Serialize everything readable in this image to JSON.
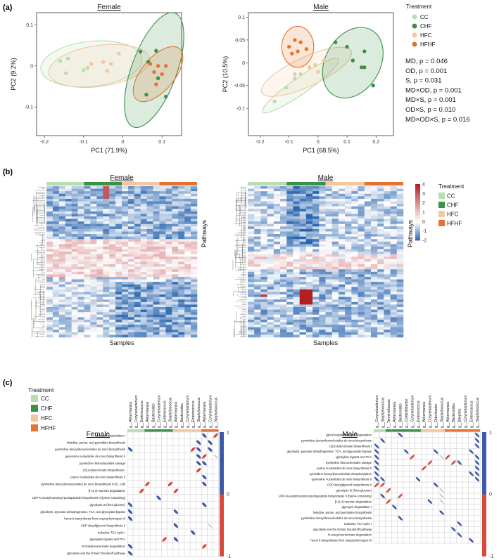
{
  "panel_labels": [
    "(a)",
    "(b)",
    "(c)"
  ],
  "colors": {
    "CC": "#b9dcb0",
    "CHF": "#3a9148",
    "HFC": "#f2c7a0",
    "HFHF": "#e3732e",
    "pos": "#d8493c",
    "neg": "#3d5aa8"
  },
  "chart_data": [
    {
      "type": "scatter",
      "title": "Female",
      "xlabel": "PC1 (71.9%)",
      "ylabel": "PC2 (9.2%)",
      "xlim": [
        -0.22,
        0.15
      ],
      "ylim": [
        -0.17,
        0.13
      ],
      "xticks": [
        -0.2,
        -0.1,
        0.0,
        0.1
      ],
      "yticks": [
        -0.1,
        0.0,
        0.1
      ],
      "series": [
        {
          "name": "CC",
          "points": [
            [
              -0.16,
              0.012
            ],
            [
              -0.14,
              0.018
            ],
            [
              -0.145,
              -0.018
            ],
            [
              -0.09,
              -0.005
            ],
            [
              -0.1,
              -0.01
            ]
          ]
        },
        {
          "name": "CHF",
          "points": [
            [
              0.045,
              0.035
            ],
            [
              0.065,
              0.01
            ],
            [
              0.085,
              0.037
            ],
            [
              0.09,
              -0.03
            ],
            [
              0.06,
              -0.07
            ],
            [
              0.11,
              -0.075
            ]
          ]
        },
        {
          "name": "HFC",
          "points": [
            [
              -0.05,
              0.01
            ],
            [
              -0.03,
              0.005
            ],
            [
              -0.01,
              0.03
            ],
            [
              -0.04,
              -0.012
            ],
            [
              -0.08,
              0.005
            ]
          ]
        },
        {
          "name": "HFHF",
          "points": [
            [
              0.07,
              0.005
            ],
            [
              0.09,
              0.0
            ],
            [
              0.08,
              -0.015
            ],
            [
              0.1,
              -0.02
            ],
            [
              0.11,
              0.0
            ],
            [
              0.085,
              -0.045
            ]
          ]
        }
      ],
      "ellipses": [
        {
          "group": "CC",
          "cx": -0.08,
          "cy": 0.005,
          "rx": 0.13,
          "ry": 0.055,
          "angle": -6
        },
        {
          "group": "HFC",
          "cx": -0.06,
          "cy": 0.0,
          "rx": 0.13,
          "ry": 0.05,
          "angle": -8
        },
        {
          "group": "CHF",
          "cx": 0.08,
          "cy": -0.01,
          "rx": 0.155,
          "ry": 0.055,
          "angle": -70
        },
        {
          "group": "HFHF",
          "cx": 0.09,
          "cy": -0.02,
          "rx": 0.085,
          "ry": 0.04,
          "angle": -50
        }
      ]
    },
    {
      "type": "scatter",
      "title": "Male",
      "xlabel": "PC1 (68.5%)",
      "ylabel": "PC2 (10.5%)",
      "xlim": [
        -0.24,
        0.26
      ],
      "ylim": [
        -0.16,
        0.11
      ],
      "xticks": [
        -0.2,
        -0.1,
        0.0,
        0.1,
        0.2
      ],
      "yticks": [
        -0.1,
        -0.05,
        0.0,
        0.05,
        0.1
      ],
      "series": [
        {
          "name": "CC",
          "points": [
            [
              -0.15,
              -0.085
            ],
            [
              -0.11,
              -0.055
            ],
            [
              -0.08,
              -0.035
            ],
            [
              -0.06,
              -0.025
            ],
            [
              -0.03,
              -0.01
            ]
          ]
        },
        {
          "name": "CHF",
          "points": [
            [
              0.06,
              0.045
            ],
            [
              0.1,
              0.035
            ],
            [
              0.16,
              0.025
            ],
            [
              0.15,
              -0.01
            ],
            [
              0.12,
              0.005
            ],
            [
              0.16,
              -0.01
            ],
            [
              0.19,
              -0.05
            ]
          ]
        },
        {
          "name": "HFC",
          "points": [
            [
              -0.08,
              -0.025
            ],
            [
              -0.03,
              -0.01
            ],
            [
              -0.01,
              -0.005
            ],
            [
              0.02,
              0.005
            ],
            [
              0.0,
              -0.02
            ]
          ]
        },
        {
          "name": "HFHF",
          "points": [
            [
              -0.1,
              0.035
            ],
            [
              -0.08,
              0.05
            ],
            [
              -0.06,
              0.045
            ],
            [
              -0.07,
              0.025
            ],
            [
              -0.04,
              0.03
            ],
            [
              -0.09,
              0.02
            ]
          ]
        }
      ],
      "ellipses": [
        {
          "group": "CC",
          "cx": -0.06,
          "cy": -0.05,
          "rx": 0.16,
          "ry": 0.018,
          "angle": -35
        },
        {
          "group": "HFC",
          "cx": -0.04,
          "cy": -0.02,
          "rx": 0.17,
          "ry": 0.032,
          "angle": -25
        },
        {
          "group": "CHF",
          "cx": 0.12,
          "cy": 0.0,
          "rx": 0.13,
          "ry": 0.06,
          "angle": -60
        },
        {
          "group": "HFHF",
          "cx": -0.07,
          "cy": 0.035,
          "rx": 0.055,
          "ry": 0.045,
          "angle": 0
        }
      ]
    },
    {
      "type": "heatmap",
      "title": "Female",
      "xlabel": "Samples",
      "ylabel": "Pathways",
      "treatment_bar": [
        "CC",
        "CHF",
        "HFC",
        "HFHF"
      ],
      "colorbar_ticks": [
        4,
        3,
        2,
        1,
        0,
        -1,
        -2
      ]
    },
    {
      "type": "heatmap",
      "title": "Male",
      "xlabel": "Samples",
      "ylabel": "Pathways",
      "treatment_bar": [
        "CC",
        "CHF",
        "HFC",
        "HFHF"
      ]
    },
    {
      "type": "heatmap",
      "title": "Female",
      "colorbar_ticks": [
        1,
        0,
        -1
      ],
      "taxa": [
        "g__Akkermansia",
        "g__Corynebacterium",
        "g__Enterococcus",
        "g__Akkermansia",
        "g__Bacteroides",
        "g__Corynebacterium",
        "g__Enterococcus",
        "g__Staphylococcus",
        "g__Akkermansia",
        "g__Bacteroides",
        "g__Corynebacterium",
        "g__Enterococcus",
        "g__Staphylococcus",
        "g__Akkermansia",
        "g__Corynebacterium",
        "g__Staphylococcus"
      ],
      "taxa_groups": [
        "CC",
        "CC",
        "CC",
        "CHF",
        "CHF",
        "CHF",
        "CHF",
        "CHF",
        "HFC",
        "HFC",
        "HFC",
        "HFC",
        "HFC",
        "HFHF",
        "HFHF",
        "HFHF"
      ],
      "pathways": [
        "glycogen degradation I",
        "histidine, purine, and pyrimidine biosynthesis",
        "pyrimidine deoxyribonucleotides de novo biosynthesis",
        "guanosine nucleotides de novo biosynthesis II",
        "pyrimidine ribonucleosides salvage",
        "(5Z)-dodecenoate biosynthesis I",
        "purine nucleotides de novo biosynthesis II",
        "pyrimidine deoxyribonucleotides de novo biosynthesis III (E. coli)",
        "β-(1,4)-mannan degradation",
        "UDP-N-acetylmuramoyl-pentapeptide biosynthesis II (lysine-containing)",
        "glycolysis III (from glucose)",
        "glycolysis, pyruvate dehydrogenase, TCA, and glyoxylate bypass",
        "heme b biosynthesis from uroporphyrinogen-III",
        "CDP-diacylglycerol biosynthesis II",
        "reductive TCA cycle I",
        "glyoxylate bypass and TCA",
        "N-acetylneuraminate degradation",
        "glycolysis and the Entner Doudoroff pathway"
      ],
      "cells": [
        [
          0,
          15,
          1
        ],
        [
          0,
          13,
          -1
        ],
        [
          1,
          14,
          -1
        ],
        [
          1,
          12,
          -1
        ],
        [
          2,
          0,
          -1
        ],
        [
          2,
          11,
          1
        ],
        [
          2,
          12,
          -1
        ],
        [
          2,
          14,
          -1
        ],
        [
          3,
          12,
          -1
        ],
        [
          3,
          13,
          1
        ],
        [
          3,
          15,
          -0.2
        ],
        [
          4,
          12,
          -1
        ],
        [
          4,
          13,
          -1
        ],
        [
          5,
          12,
          1
        ],
        [
          6,
          13,
          -1
        ],
        [
          7,
          3,
          1
        ],
        [
          7,
          7,
          1
        ],
        [
          7,
          13,
          -1
        ],
        [
          8,
          2,
          1
        ],
        [
          8,
          8,
          1
        ],
        [
          9,
          5,
          -1
        ],
        [
          10,
          0,
          -1
        ],
        [
          10,
          13,
          -1
        ],
        [
          11,
          0,
          -1
        ],
        [
          11,
          8,
          -1
        ],
        [
          12,
          0,
          -1
        ],
        [
          13,
          8,
          -1
        ],
        [
          13,
          14,
          -0.2
        ],
        [
          14,
          11,
          -1
        ],
        [
          15,
          6,
          1
        ],
        [
          15,
          8,
          -1
        ],
        [
          16,
          0,
          -1
        ],
        [
          16,
          13,
          1
        ],
        [
          17,
          0,
          -1
        ]
      ]
    },
    {
      "type": "heatmap",
      "title": "Male",
      "taxa": [
        "g__Corynebacterium",
        "g__Staphylococcus",
        "f__Tannerellaceae",
        "g__Akkermansia",
        "g__Bacteroides",
        "g__Coldesttibacter",
        "g__Corynebacterium",
        "g__Enterococcus",
        "g__Akkermansia",
        "g__Corynebacterium",
        "g__Odoribacter",
        "g__Staphylococcus",
        "g__Akkermansia",
        "g__Bacteroides",
        "g__Bilophila",
        "g__Corynebacterium",
        "g__Enterococcus",
        "g__Staphylococcus"
      ],
      "taxa_groups": [
        "CC",
        "CC",
        "CHF",
        "CHF",
        "CHF",
        "CHF",
        "CHF",
        "CHF",
        "HFC",
        "HFC",
        "HFC",
        "HFC",
        "HFHF",
        "HFHF",
        "HFHF",
        "HFHF",
        "HFHF",
        "HFHF"
      ],
      "pathways": [
        "glycol metabolism and degradation",
        "pyrimidine deoxyribonucleotides de novo biosynthesis",
        "(5Z)-dodecenoate biosynthesis I",
        "glycolysis, pyruvate dehydrogenase, TCA, and glyoxylate bypass",
        "glyoxylate bypass and TCA",
        "pyrimidine ribonucleosides salvage",
        "purine nucleotides de novo biosynthesis II",
        "pyrimidine deoxyribonucleotide phosphorylation",
        "guanosine nucleotides de novo biosynthesis II",
        "CDP-diacylglycerol biosynthesis II",
        "glycolysis III (from glucose)",
        "UDP-N-acetylmuramoyl-pentapeptide biosynthesis II (lysine-containing)",
        "β-(1,4)-mannan degradation",
        "glycogen degradation I",
        "histidine, purine, and pyrimidine biosynthesis",
        "pyrimidine deoxyribonucleotides de novo biosynthesis",
        "reductive TCA cycle I",
        "glycolysis and the Entner Doudoroff pathway",
        "N-acetylneuraminate degradation",
        "heme b biosynthesis from uroporphyrinogen-III"
      ],
      "cells": [
        [
          0,
          4,
          -1
        ],
        [
          0,
          17,
          -1
        ],
        [
          1,
          1,
          -1
        ],
        [
          1,
          17,
          -1
        ],
        [
          2,
          0,
          -1
        ],
        [
          2,
          17,
          -1
        ],
        [
          3,
          0,
          -1
        ],
        [
          3,
          5,
          -1
        ],
        [
          3,
          10,
          -1
        ],
        [
          3,
          16,
          -1
        ],
        [
          4,
          0,
          -1
        ],
        [
          4,
          6,
          1
        ],
        [
          4,
          11,
          -0.2
        ],
        [
          4,
          12,
          1
        ],
        [
          4,
          17,
          -1
        ],
        [
          5,
          0,
          -1
        ],
        [
          5,
          9,
          1
        ],
        [
          5,
          13,
          1
        ],
        [
          5,
          14,
          -1
        ],
        [
          5,
          17,
          -1
        ],
        [
          6,
          0,
          -1
        ],
        [
          6,
          8,
          1
        ],
        [
          6,
          17,
          -1
        ],
        [
          7,
          0,
          -1
        ],
        [
          7,
          16,
          -1
        ],
        [
          7,
          17,
          -1
        ],
        [
          8,
          0,
          -1
        ],
        [
          8,
          1,
          -1
        ],
        [
          8,
          7,
          -1
        ],
        [
          8,
          17,
          -1
        ],
        [
          9,
          0,
          1
        ],
        [
          9,
          1,
          1
        ],
        [
          9,
          10,
          -1
        ],
        [
          10,
          2,
          1
        ],
        [
          10,
          11,
          -0.2
        ],
        [
          11,
          1,
          -1
        ],
        [
          11,
          4,
          1
        ],
        [
          11,
          11,
          -0.2
        ],
        [
          12,
          2,
          1
        ],
        [
          12,
          9,
          -1
        ],
        [
          12,
          11,
          -0.2
        ],
        [
          13,
          3,
          -1
        ],
        [
          14,
          11,
          -1
        ],
        [
          15,
          4,
          -1
        ],
        [
          16,
          14,
          -1
        ],
        [
          17,
          13,
          -1
        ],
        [
          18,
          14,
          -1
        ],
        [
          19,
          16,
          -1
        ]
      ]
    }
  ],
  "legend": {
    "title": "Treatment",
    "items": [
      "CC",
      "CHF",
      "HFC",
      "HFHF"
    ]
  },
  "stats": [
    "MD, p = 0.046",
    "OD, p = 0.001",
    "S, p = 0.031",
    "MD×OD, p = 0.001",
    "MD×S, p = 0.001",
    "OD×S, p = 0.010",
    "MD×OD×S, p = 0.016"
  ]
}
